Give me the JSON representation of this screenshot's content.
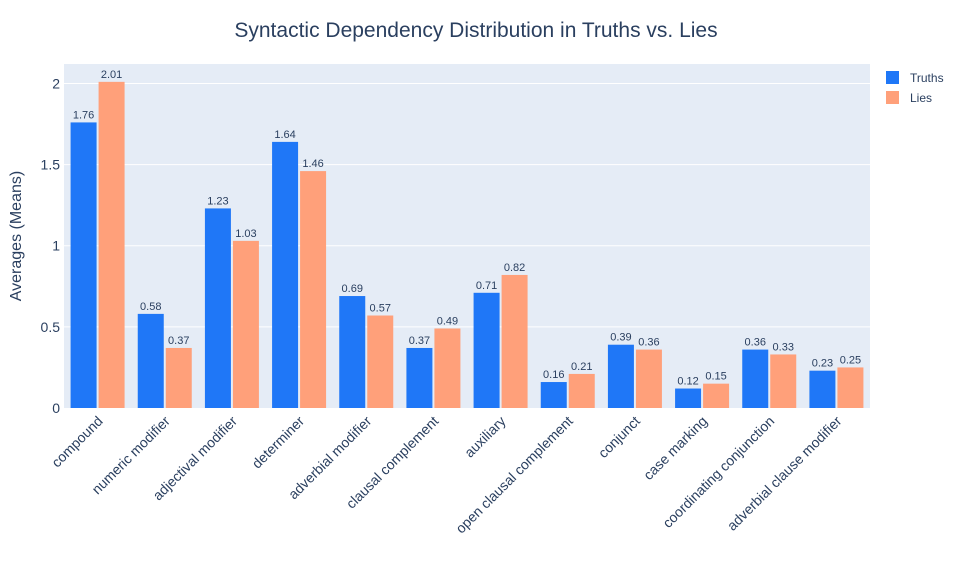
{
  "chart_data": {
    "type": "bar",
    "title": "Syntactic Dependency Distribution in Truths vs. Lies",
    "xlabel": "",
    "ylabel": "Averages (Means)",
    "ylim": [
      0,
      2.12
    ],
    "yticks": [
      0,
      0.5,
      1,
      1.5,
      2
    ],
    "ytick_labels": [
      "0",
      "0.5",
      "1",
      "1.5",
      "2"
    ],
    "grid": true,
    "legend_position": "top-right",
    "categories": [
      "compound",
      "numeric modifier",
      "adjectival modifier",
      "determiner",
      "adverbial modifier",
      "clausal complement",
      "auxiliary",
      "open clausal complement",
      "conjunct",
      "case marking",
      "coordinating conjunction",
      "adverbial clause modifier"
    ],
    "series": [
      {
        "name": "Truths",
        "color": "#1f77f7",
        "values": [
          1.76,
          0.58,
          1.23,
          1.64,
          0.69,
          0.37,
          0.71,
          0.16,
          0.39,
          0.12,
          0.36,
          0.23
        ],
        "labels": [
          "1.76",
          "0.58",
          "1.23",
          "1.64",
          "0.69",
          "0.37",
          "0.71",
          "0.16",
          "0.39",
          "0.12",
          "0.36",
          "0.23"
        ]
      },
      {
        "name": "Lies",
        "color": "#ffa07a",
        "values": [
          2.01,
          0.37,
          1.03,
          1.46,
          0.57,
          0.49,
          0.82,
          0.21,
          0.36,
          0.15,
          0.33,
          0.25
        ],
        "labels": [
          "2.01",
          "0.37",
          "1.03",
          "1.46",
          "0.57",
          "0.49",
          "0.82",
          "0.21",
          "0.36",
          "0.15",
          "0.33",
          "0.25"
        ]
      }
    ]
  }
}
